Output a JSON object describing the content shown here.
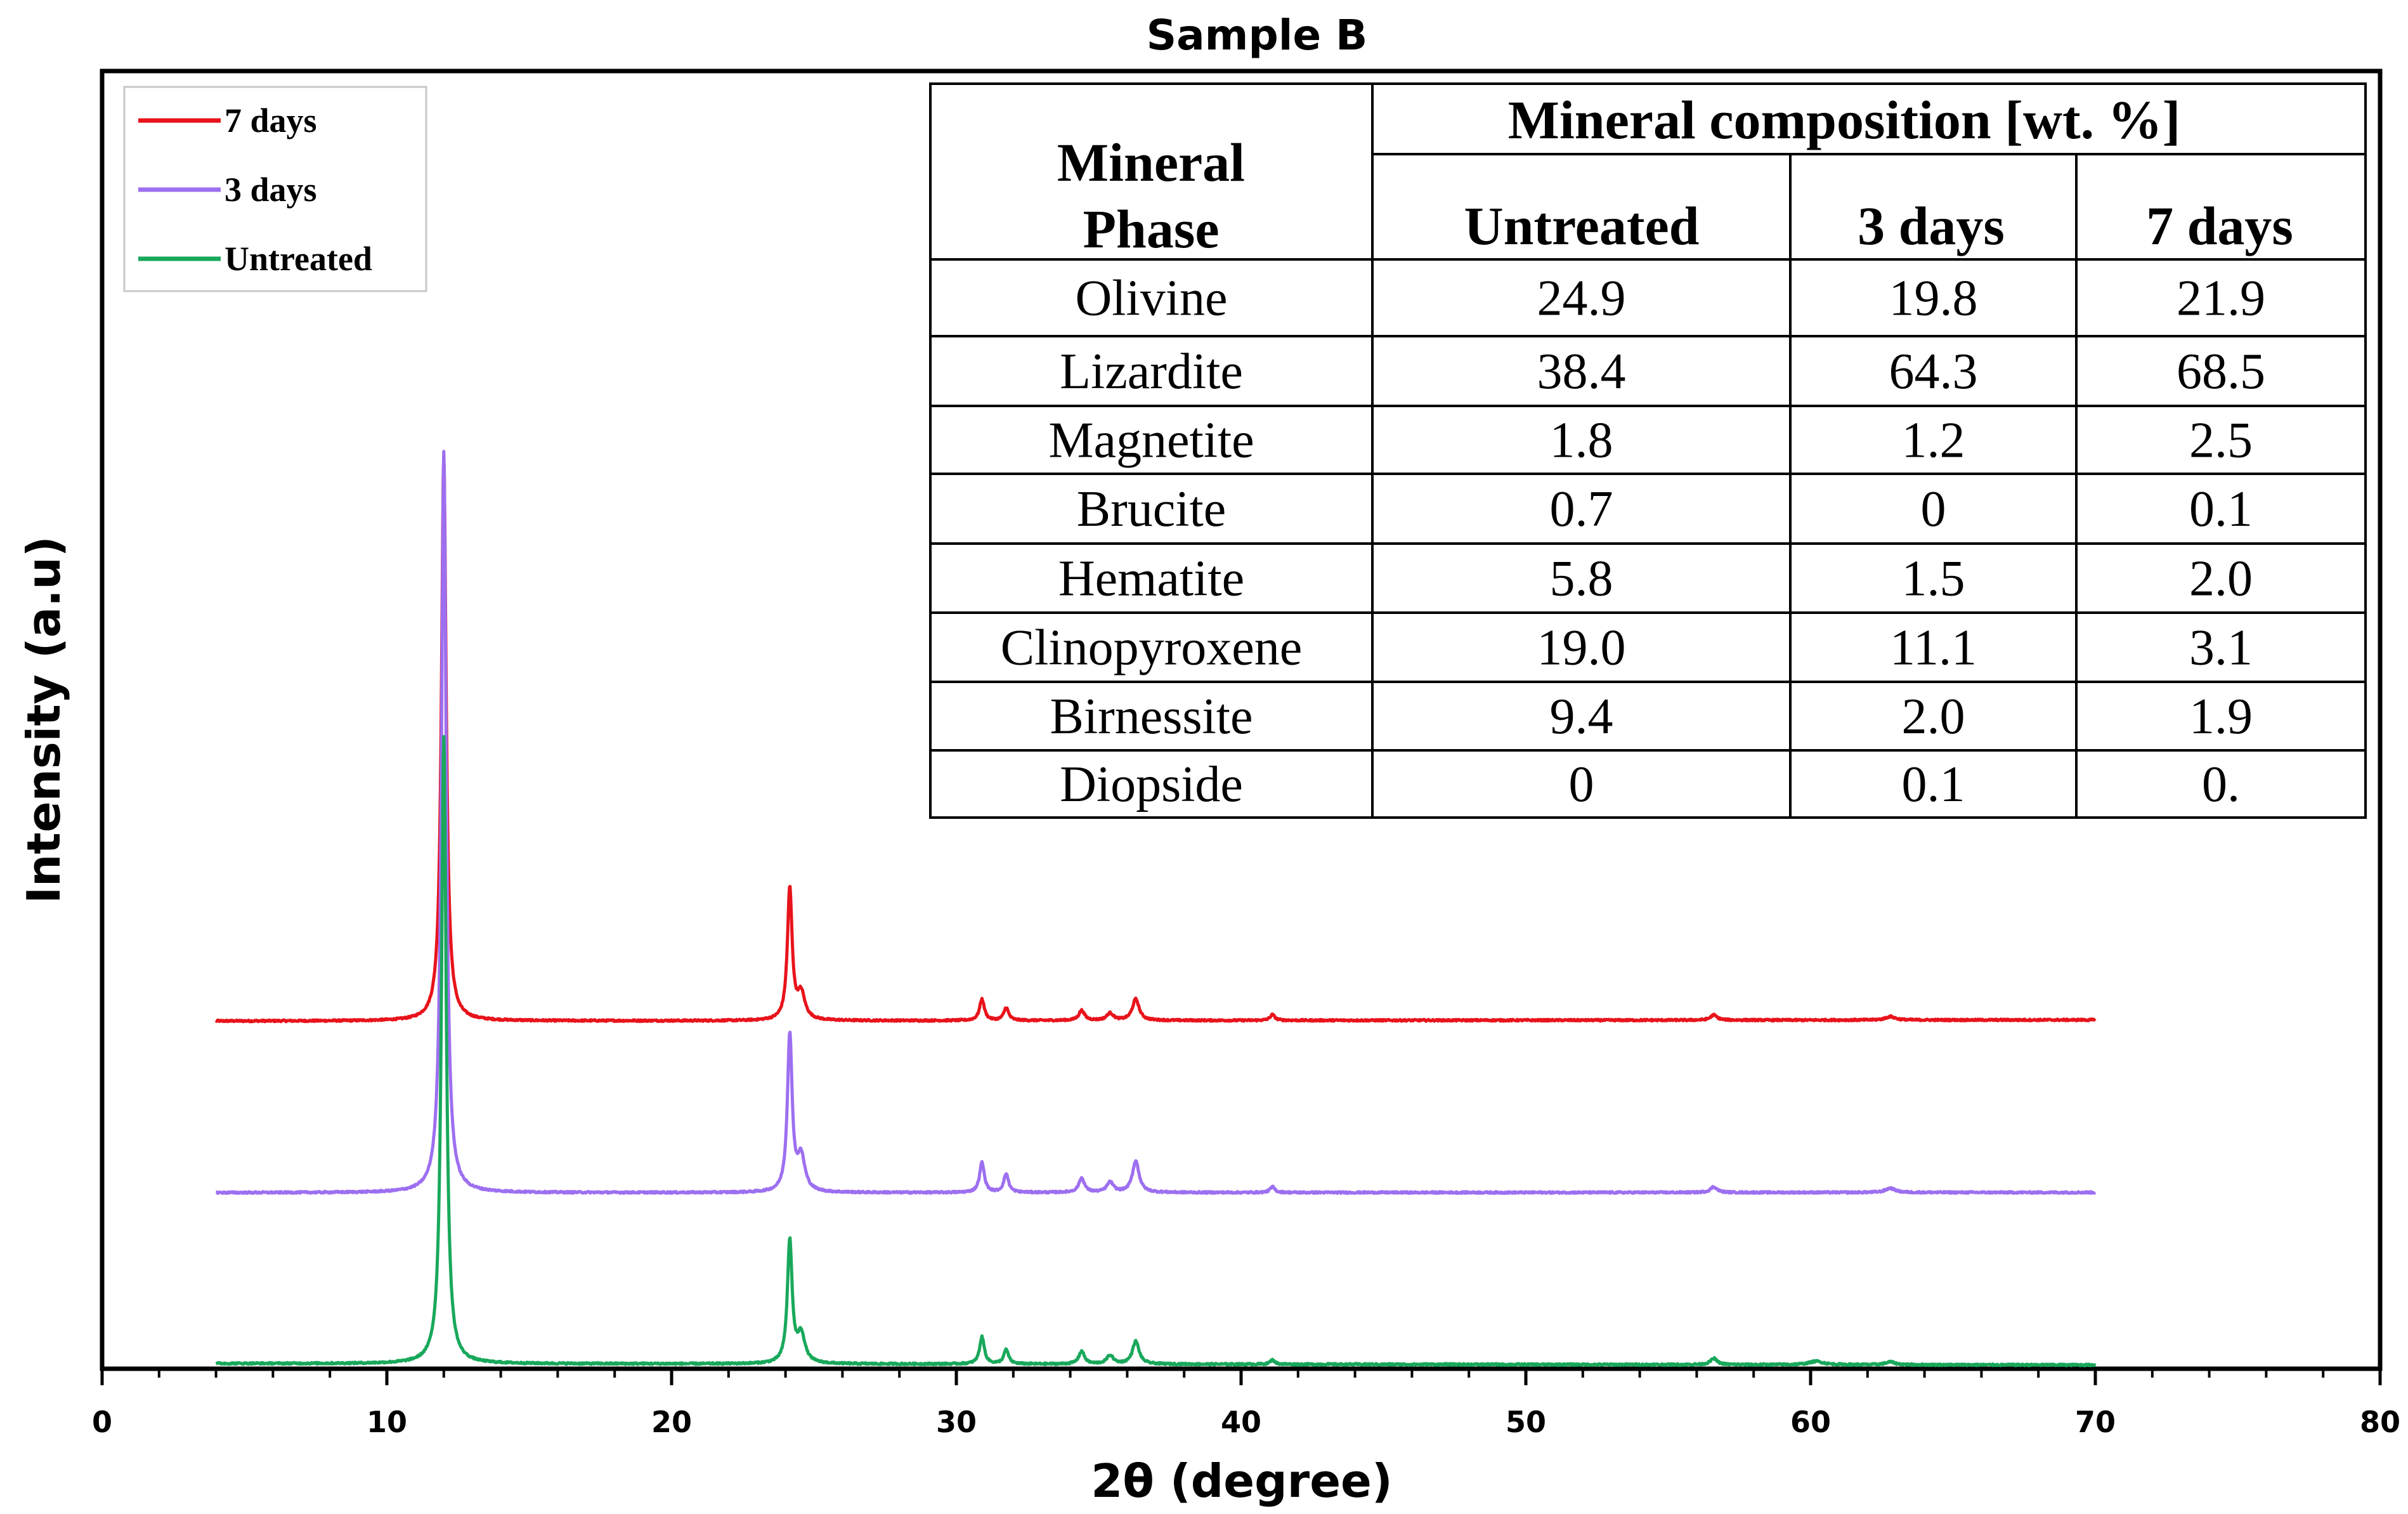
{
  "chart_data": {
    "type": "line",
    "title": "Sample B",
    "xlabel": "2θ (degree)",
    "ylabel": "Intensity (a.u)",
    "xlim": [
      0,
      80
    ],
    "xticks": [
      "0",
      "10",
      "20",
      "30",
      "40",
      "50",
      "60",
      "70",
      "80"
    ],
    "xrange_data": [
      4,
      70
    ],
    "legend_position": "top-left",
    "series": [
      {
        "name": "7 days",
        "color": "#e8131b",
        "baseline_start": 0.96,
        "baseline_end": 1.0,
        "peaks": [
          {
            "x": 12.0,
            "height": 19.8,
            "width": 0.1
          },
          {
            "x": 24.15,
            "height": 4.6,
            "width": 0.1
          },
          {
            "x": 24.55,
            "height": 0.9,
            "width": 0.16
          },
          {
            "x": 30.9,
            "height": 0.75,
            "width": 0.1
          },
          {
            "x": 31.75,
            "height": 0.45,
            "width": 0.1
          },
          {
            "x": 34.4,
            "height": 0.35,
            "width": 0.12
          },
          {
            "x": 35.4,
            "height": 0.25,
            "width": 0.14
          },
          {
            "x": 36.3,
            "height": 0.75,
            "width": 0.14
          },
          {
            "x": 41.1,
            "height": 0.2,
            "width": 0.1
          },
          {
            "x": 56.6,
            "height": 0.18,
            "width": 0.14
          },
          {
            "x": 62.8,
            "height": 0.12,
            "width": 0.2
          }
        ]
      },
      {
        "name": "3 days",
        "color": "#9d6ff0",
        "baseline_start": 0.99,
        "baseline_end": 1.0,
        "peaks": [
          {
            "x": 12.0,
            "height": 26.0,
            "width": 0.1
          },
          {
            "x": 24.15,
            "height": 5.5,
            "width": 0.1
          },
          {
            "x": 24.55,
            "height": 1.2,
            "width": 0.16
          },
          {
            "x": 30.9,
            "height": 1.05,
            "width": 0.1
          },
          {
            "x": 31.75,
            "height": 0.65,
            "width": 0.1
          },
          {
            "x": 34.4,
            "height": 0.5,
            "width": 0.12
          },
          {
            "x": 35.4,
            "height": 0.35,
            "width": 0.14
          },
          {
            "x": 36.3,
            "height": 1.1,
            "width": 0.14
          },
          {
            "x": 41.1,
            "height": 0.2,
            "width": 0.1
          },
          {
            "x": 56.6,
            "height": 0.2,
            "width": 0.14
          },
          {
            "x": 62.8,
            "height": 0.15,
            "width": 0.2
          }
        ]
      },
      {
        "name": "Untreated",
        "color": "#19a85b",
        "baseline_start": 1.05,
        "baseline_end": 1.0,
        "peaks": [
          {
            "x": 12.0,
            "height": 22.0,
            "width": 0.1
          },
          {
            "x": 24.15,
            "height": 4.3,
            "width": 0.1
          },
          {
            "x": 24.55,
            "height": 1.0,
            "width": 0.16
          },
          {
            "x": 30.9,
            "height": 0.95,
            "width": 0.1
          },
          {
            "x": 31.75,
            "height": 0.5,
            "width": 0.1
          },
          {
            "x": 34.4,
            "height": 0.45,
            "width": 0.12
          },
          {
            "x": 35.4,
            "height": 0.3,
            "width": 0.14
          },
          {
            "x": 36.3,
            "height": 0.8,
            "width": 0.14
          },
          {
            "x": 41.1,
            "height": 0.15,
            "width": 0.1
          },
          {
            "x": 56.6,
            "height": 0.22,
            "width": 0.14
          },
          {
            "x": 60.2,
            "height": 0.12,
            "width": 0.3
          },
          {
            "x": 62.8,
            "height": 0.1,
            "width": 0.2
          }
        ]
      }
    ],
    "inset_table": {
      "header_col": "Mineral Phase",
      "header_group": "Mineral composition [wt. %]",
      "columns": [
        "Untreated",
        "3 days",
        "7 days"
      ],
      "rows": [
        {
          "phase": "Olivine",
          "values": [
            "24.9",
            "19.8",
            "21.9"
          ]
        },
        {
          "phase": "Lizardite",
          "values": [
            "38.4",
            "64.3",
            "68.5"
          ]
        },
        {
          "phase": "Magnetite",
          "values": [
            "1.8",
            "1.2",
            "2.5"
          ]
        },
        {
          "phase": "Brucite",
          "values": [
            "0.7",
            "0",
            "0.1"
          ]
        },
        {
          "phase": "Hematite",
          "values": [
            "5.8",
            "1.5",
            "2.0"
          ]
        },
        {
          "phase": "Clinopyroxene",
          "values": [
            "19.0",
            "11.1",
            "3.1"
          ]
        },
        {
          "phase": "Birnessite",
          "values": [
            "9.4",
            "2.0",
            "1.9"
          ]
        },
        {
          "phase": "Diopside",
          "values": [
            "0",
            "0.1",
            "0."
          ]
        }
      ]
    }
  }
}
